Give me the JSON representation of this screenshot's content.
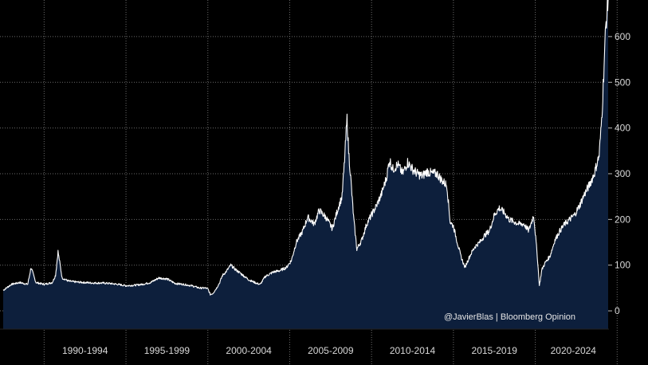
{
  "chart_data": {
    "type": "area",
    "title": "",
    "xlabel": "",
    "ylabel": "",
    "xlim": [
      1987.5,
      2024.45
    ],
    "ylim": [
      -40,
      680
    ],
    "y_ticks": [
      0,
      100,
      200,
      300,
      400,
      500,
      600
    ],
    "y_tick_labels": [
      "0",
      "100",
      "200",
      "300",
      "400",
      "500",
      "600"
    ],
    "x_periods": [
      {
        "label": "1990-1994",
        "start": 1990,
        "end": 1995
      },
      {
        "label": "1995-1999",
        "start": 1995,
        "end": 2000
      },
      {
        "label": "2000-2004",
        "start": 2000,
        "end": 2005
      },
      {
        "label": "2005-2009",
        "start": 2005,
        "end": 2010
      },
      {
        "label": "2010-2014",
        "start": 2010,
        "end": 2015
      },
      {
        "label": "2015-2019",
        "start": 2015,
        "end": 2020
      },
      {
        "label": "2020-2024",
        "start": 2020,
        "end": 2025
      }
    ],
    "grid": true,
    "axis_side": "right",
    "fill_color": "#0d1f3c",
    "line_color": "#ffffff",
    "background": "#000000",
    "grid_color": "#6a6a6a",
    "series": [
      {
        "x": [
          1987.5,
          1988.0,
          1988.5,
          1989.0,
          1989.2,
          1989.5,
          1990.0,
          1990.5,
          1990.7,
          1990.85,
          1991.1,
          1991.5,
          1992.0,
          1992.5,
          1993.0,
          1993.5,
          1994.0,
          1994.5,
          1995.0,
          1995.5,
          1996.0,
          1996.5,
          1997.0,
          1997.5,
          1998.0,
          1998.5,
          1999.0,
          1999.5,
          1999.85,
          2000.0,
          2000.15,
          2000.3,
          2000.5,
          2000.7,
          2000.9,
          2001.1,
          2001.4,
          2001.7,
          2002.0,
          2002.5,
          2003.0,
          2003.2,
          2003.5,
          2004.0,
          2004.4,
          2004.8,
          2005.1,
          2005.4,
          2005.8,
          2006.1,
          2006.5,
          2006.8,
          2007.2,
          2007.6,
          2008.0,
          2008.2,
          2008.35,
          2008.5,
          2008.6,
          2008.75,
          2008.9,
          2009.1,
          2009.4,
          2009.7,
          2010.0,
          2010.3,
          2010.6,
          2010.9,
          2011.1,
          2011.3,
          2011.6,
          2011.9,
          2012.2,
          2012.5,
          2012.8,
          2013.1,
          2013.4,
          2013.7,
          2014.0,
          2014.3,
          2014.6,
          2014.8,
          2015.0,
          2015.2,
          2015.45,
          2015.7,
          2016.0,
          2016.3,
          2016.6,
          2016.9,
          2017.2,
          2017.5,
          2017.8,
          2018.1,
          2018.4,
          2018.7,
          2019.0,
          2019.3,
          2019.6,
          2019.9,
          2020.1,
          2020.25,
          2020.4,
          2020.6,
          2020.9,
          2021.2,
          2021.5,
          2021.8,
          2022.1,
          2022.4,
          2022.7,
          2023.0,
          2023.3,
          2023.6,
          2023.9,
          2024.0,
          2024.1,
          2024.2,
          2024.3,
          2024.45
        ],
        "y": [
          45,
          58,
          62,
          58,
          95,
          62,
          58,
          62,
          78,
          130,
          72,
          65,
          63,
          62,
          61,
          61,
          60,
          58,
          55,
          56,
          58,
          62,
          72,
          70,
          60,
          58,
          55,
          50,
          50,
          48,
          36,
          38,
          48,
          60,
          78,
          85,
          100,
          90,
          82,
          68,
          60,
          58,
          75,
          85,
          88,
          95,
          110,
          150,
          175,
          205,
          190,
          220,
          205,
          180,
          230,
          250,
          330,
          420,
          350,
          280,
          205,
          135,
          155,
          190,
          210,
          230,
          255,
          290,
          330,
          310,
          320,
          300,
          325,
          310,
          300,
          295,
          305,
          300,
          300,
          285,
          275,
          195,
          185,
          155,
          120,
          95,
          120,
          140,
          150,
          165,
          175,
          210,
          225,
          215,
          200,
          195,
          190,
          190,
          175,
          210,
          130,
          55,
          90,
          105,
          120,
          155,
          175,
          190,
          200,
          210,
          230,
          255,
          275,
          300,
          340,
          390,
          450,
          540,
          620,
          680
        ]
      }
    ],
    "annotations": [
      {
        "text": "@JavierBlas  |  Bloomberg Opinion"
      }
    ]
  }
}
